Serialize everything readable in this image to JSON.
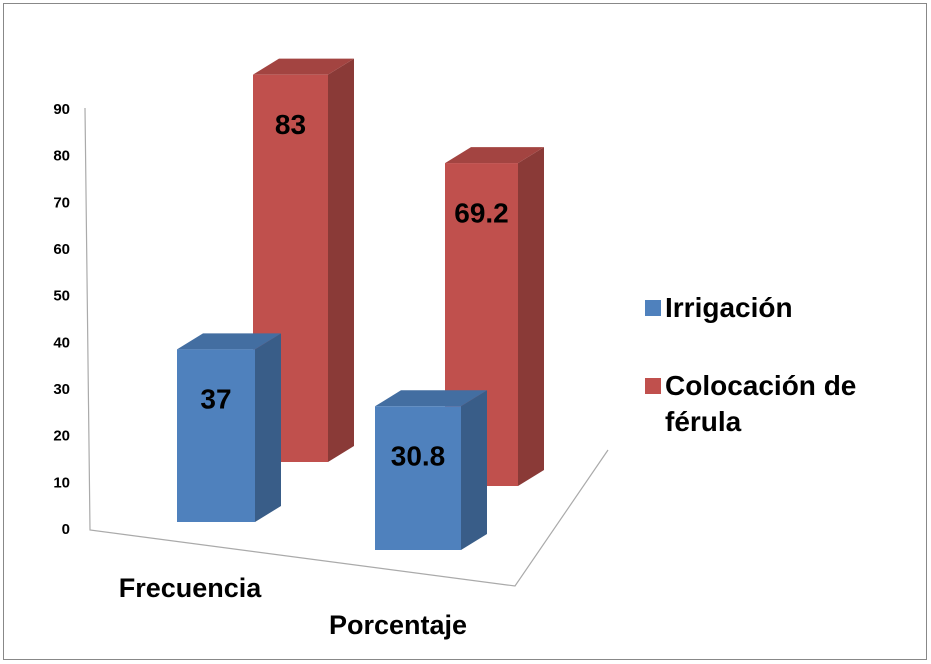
{
  "chart_data": {
    "type": "bar3d",
    "categories": [
      "Frecuencia",
      "Porcentaje"
    ],
    "series": [
      {
        "name": "Irrigación",
        "color": "#4f81bd",
        "values": [
          37,
          30.8
        ]
      },
      {
        "name": "Colocación de férula",
        "color": "#c0504d",
        "values": [
          83,
          69.2
        ]
      }
    ],
    "ylim": [
      0,
      90
    ],
    "yticks": [
      0,
      10,
      20,
      30,
      40,
      50,
      60,
      70,
      80,
      90
    ],
    "legend": "right"
  }
}
